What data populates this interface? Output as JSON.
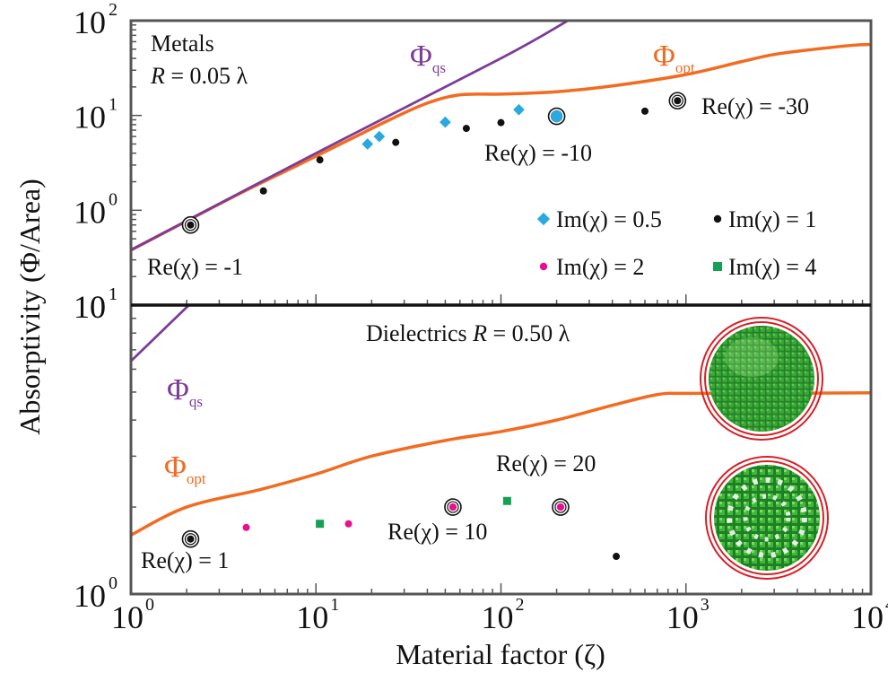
{
  "colors": {
    "opt": "#f26b21",
    "qs": "#7d3c98",
    "blue": "#29a9e0",
    "black": "#111111",
    "pink": "#ea0f8c",
    "green": "#16a055",
    "frame": "#555555",
    "sphere": "#2f9e32",
    "ring": "#d61f26"
  },
  "labels": {
    "ylabel": "Absorptivity (Φ/Area)",
    "xlabel": "Material factor (ζ)",
    "top_metals": "Metals",
    "top_R_var": "R",
    "top_R_val": " = 0.05 λ",
    "bottom_title": "Dielectrics ",
    "bottom_R_var": "R",
    "bottom_R_val": " = 0.50 λ",
    "phi": "Φ",
    "qs_sub": "qs",
    "opt_sub": "opt",
    "re_m1": "Re(χ) = -1",
    "re_m10": "Re(χ) = -10",
    "re_m30": "Re(χ) = -30",
    "re_1": "Re(χ) = 1",
    "re_10": "Re(χ) = 10",
    "re_20": "Re(χ) = 20",
    "leg_blue": "Im(χ) = 0.5",
    "leg_black": "Im(χ) = 1",
    "leg_pink": "Im(χ) = 2",
    "leg_green": "Im(χ) = 4"
  },
  "chart_data": [
    {
      "type": "scatter",
      "panel": "Metals",
      "xscale": "log",
      "yscale": "log",
      "xlim": [
        1,
        10000
      ],
      "ylim": [
        0.1,
        100
      ],
      "x_tick_labels": [
        [
          "10",
          "0"
        ],
        [
          "10",
          "1"
        ],
        [
          "10",
          "2"
        ],
        [
          "10",
          "3"
        ],
        [
          "10",
          "4"
        ]
      ],
      "y_tick_labels": [
        [
          "10",
          "1"
        ],
        [
          "10",
          "0"
        ],
        [
          "10",
          "1"
        ],
        [
          "10",
          "2"
        ]
      ],
      "lines": [
        {
          "name": "Φ_opt",
          "color": "opt",
          "points": [
            [
              1,
              0.38
            ],
            [
              2,
              0.77
            ],
            [
              4,
              1.55
            ],
            [
              8,
              3.0
            ],
            [
              15,
              5.5
            ],
            [
              25,
              9.0
            ],
            [
              40,
              13.5
            ],
            [
              60,
              16.5
            ],
            [
              100,
              16.8
            ],
            [
              200,
              17.8
            ],
            [
              400,
              20.5
            ],
            [
              1000,
              27
            ],
            [
              2000,
              37
            ],
            [
              3000,
              44
            ],
            [
              5000,
              50
            ],
            [
              8000,
              55
            ],
            [
              10000,
              56
            ]
          ]
        },
        {
          "name": "Φ_qs",
          "color": "qs",
          "points": [
            [
              1,
              0.38
            ],
            [
              10,
              4.0
            ],
            [
              100,
              40
            ],
            [
              230,
              100
            ]
          ]
        }
      ],
      "series": [
        {
          "name": "Im(χ) = 0.5",
          "marker": "diamond",
          "color": "blue",
          "points": [
            [
              19,
              5.0
            ],
            [
              22,
              6.0
            ],
            [
              50,
              8.5
            ],
            [
              125,
              11.5
            ],
            [
              200,
              9.8
            ]
          ]
        },
        {
          "name": "Im(χ) = 1",
          "marker": "circle",
          "color": "black",
          "points": [
            [
              2.1,
              0.7
            ],
            [
              5.2,
              1.6
            ],
            [
              10.5,
              3.4
            ],
            [
              27,
              5.2
            ],
            [
              65,
              7.3
            ],
            [
              100,
              8.4
            ],
            [
              600,
              11.1
            ],
            [
              900,
              14.3
            ]
          ]
        },
        {
          "name": "Im(χ) = 2",
          "marker": "circle",
          "color": "pink",
          "points": []
        },
        {
          "name": "Im(χ) = 4",
          "marker": "square",
          "color": "green",
          "points": []
        }
      ],
      "highlighted": [
        [
          2.1,
          0.7
        ],
        [
          200,
          9.8
        ],
        [
          900,
          14.3
        ]
      ],
      "annotations": [
        "Re(χ) = -1",
        "Re(χ) = -10",
        "Re(χ) = -30"
      ],
      "legend": "bottom-right"
    },
    {
      "type": "scatter",
      "panel": "Dielectrics",
      "xscale": "log",
      "yscale": "log",
      "xlim": [
        1,
        10000
      ],
      "ylim": [
        1,
        10
      ],
      "x_tick_labels": [
        [
          "10",
          "0"
        ],
        [
          "10",
          "1"
        ],
        [
          "10",
          "2"
        ],
        [
          "10",
          "3"
        ],
        [
          "10",
          "4"
        ]
      ],
      "y_tick_labels": [
        [
          "10",
          "0"
        ],
        [
          "10",
          "1"
        ]
      ],
      "lines": [
        {
          "name": "Φ_opt",
          "color": "opt",
          "points": [
            [
              1,
              1.6
            ],
            [
              2,
              2.0
            ],
            [
              5,
              2.3
            ],
            [
              10,
              2.6
            ],
            [
              20,
              3.0
            ],
            [
              50,
              3.4
            ],
            [
              100,
              3.65
            ],
            [
              200,
              4.0
            ],
            [
              400,
              4.5
            ],
            [
              700,
              4.9
            ],
            [
              1000,
              4.95
            ],
            [
              3000,
              4.95
            ],
            [
              10000,
              4.97
            ]
          ]
        },
        {
          "name": "Φ_qs",
          "color": "qs",
          "points": [
            [
              1,
              6.4
            ],
            [
              2.4,
              11
            ]
          ]
        }
      ],
      "series": [
        {
          "name": "Im(χ) = 1",
          "marker": "circle",
          "color": "black",
          "points": [
            [
              2.1,
              1.55
            ],
            [
              55,
              2.0
            ],
            [
              210,
              2.0
            ],
            [
              420,
              1.35
            ]
          ]
        },
        {
          "name": "Im(χ) = 2",
          "marker": "circle",
          "color": "pink",
          "points": [
            [
              4.2,
              1.7
            ],
            [
              15,
              1.75
            ],
            [
              55,
              2.0
            ],
            [
              210,
              2.0
            ]
          ]
        },
        {
          "name": "Im(χ) = 4",
          "marker": "square",
          "color": "green",
          "points": [
            [
              10.5,
              1.75
            ],
            [
              108,
              2.1
            ]
          ]
        }
      ],
      "highlighted": [
        [
          2.1,
          1.55
        ],
        [
          55,
          2.0
        ],
        [
          210,
          2.0
        ]
      ],
      "annotations": [
        "Re(χ) = 1",
        "Re(χ) = 10",
        "Re(χ) = 20"
      ]
    }
  ]
}
